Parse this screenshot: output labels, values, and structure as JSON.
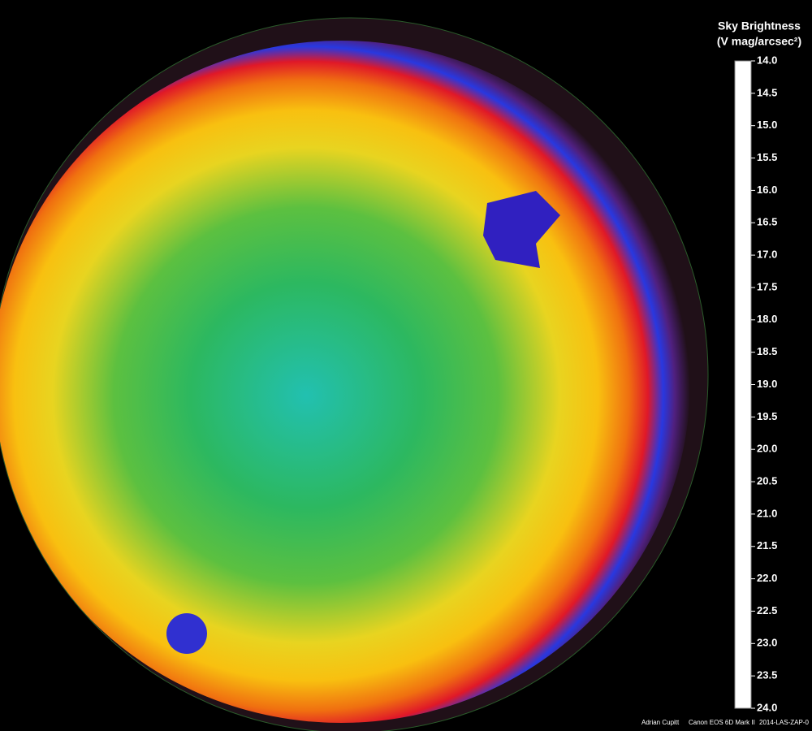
{
  "chart_data": {
    "type": "colormap",
    "title": "Sky Brightness",
    "subtitle": "(V mag/arcsec²)",
    "ylim": [
      24,
      14
    ],
    "yticks": [
      {
        "value": 14,
        "label": "14.0"
      },
      {
        "value": 14.5,
        "label": "14.5"
      },
      {
        "value": 15,
        "label": "15.0"
      },
      {
        "value": 15.5,
        "label": "15.5"
      },
      {
        "value": 16,
        "label": "16.0"
      },
      {
        "value": 16.5,
        "label": "16.5"
      },
      {
        "value": 17,
        "label": "17.0"
      },
      {
        "value": 17.5,
        "label": "17.5"
      },
      {
        "value": 18,
        "label": "18.0"
      },
      {
        "value": 18.5,
        "label": "18.5"
      },
      {
        "value": 19,
        "label": "19.0"
      },
      {
        "value": 19.5,
        "label": "19.5"
      },
      {
        "value": 20,
        "label": "20.0"
      },
      {
        "value": 20.5,
        "label": "20.5"
      },
      {
        "value": 21,
        "label": "21.0"
      },
      {
        "value": 21.5,
        "label": "21.5"
      },
      {
        "value": 22,
        "label": "22.0"
      },
      {
        "value": 22.5,
        "label": "22.5"
      },
      {
        "value": 23,
        "label": "23.0"
      },
      {
        "value": 23.5,
        "label": "23.5"
      },
      {
        "value": 24,
        "label": "24.0"
      }
    ],
    "colormap": [
      {
        "value": 14,
        "color": "#ffffff"
      },
      {
        "value": 15,
        "color": "#ffc8e0"
      },
      {
        "value": 16,
        "color": "#f8f4d0"
      },
      {
        "value": 17,
        "color": "#d8fff0"
      },
      {
        "value": 17.5,
        "color": "#c8ffff"
      },
      {
        "value": 18,
        "color": "#f0c8f0"
      },
      {
        "value": 18.5,
        "color": "#ff6090"
      },
      {
        "value": 19,
        "color": "#e01020"
      },
      {
        "value": 19.5,
        "color": "#ffb000"
      },
      {
        "value": 20,
        "color": "#f0e020"
      },
      {
        "value": 20.5,
        "color": "#30c040"
      },
      {
        "value": 21,
        "color": "#20b0d0"
      },
      {
        "value": 21.5,
        "color": "#2020e0"
      },
      {
        "value": 22,
        "color": "#6020a0"
      },
      {
        "value": 22.5,
        "color": "#503050"
      },
      {
        "value": 23,
        "color": "#301818"
      },
      {
        "value": 24,
        "color": "#000000"
      }
    ],
    "credits": [
      "Adrian Cupitt",
      "Canon EOS 6D Mark II",
      "2014-LAS-ZAP-0"
    ]
  }
}
